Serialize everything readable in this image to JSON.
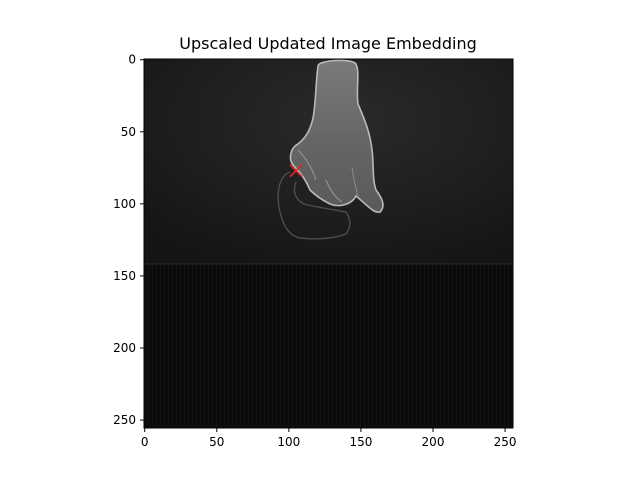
{
  "chart_data": {
    "type": "heatmap",
    "title": "Upscaled Updated Image Embedding",
    "xlabel": "",
    "ylabel": "",
    "xlim": [
      0,
      255
    ],
    "ylim": [
      255,
      0
    ],
    "x_ticks": [
      0,
      50,
      100,
      150,
      200,
      250
    ],
    "y_ticks": [
      0,
      50,
      100,
      150,
      200,
      250
    ],
    "colormap": "gray",
    "marker": {
      "x": 105,
      "y": 77,
      "symbol": "x",
      "color": "#e8262c"
    },
    "grid": false
  }
}
